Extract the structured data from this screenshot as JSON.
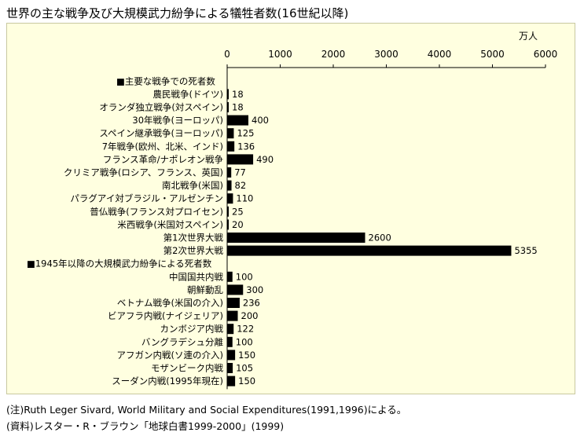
{
  "title": "世界の主な戦争及び大規模武力紛争による犠牲者数(16世紀以降)",
  "unit_label": "万人",
  "notes": [
    "(注)Ruth Leger Sivard, World Military and Social Expenditures(1991,1996)による。",
    "(資料)レスター・R・ブラウン「地球白書1999-2000」(1999)"
  ],
  "chart_data": [
    {
      "type": "bar",
      "orientation": "horizontal",
      "section_label": "■主要な戦争での死者数",
      "xlim": [
        0,
        6000
      ],
      "x_ticks": [
        0,
        1000,
        2000,
        3000,
        4000,
        5000,
        6000
      ],
      "bar_color": "#000000",
      "categories": [
        "農民戦争(ドイツ)",
        "オランダ独立戦争(対スペイン)",
        "30年戦争(ヨーロッパ)",
        "スペイン継承戦争(ヨーロッパ)",
        "7年戦争(欧州、北米、インド)",
        "フランス革命/ナポレオン戦争",
        "クリミア戦争(ロシア、フランス、英国)",
        "南北戦争(米国)",
        "パラグアイ対ブラジル・アルゼンチン",
        "普仏戦争(フランス対プロイセン)",
        "米西戦争(米国対スペイン)",
        "第1次世界大戦",
        "第2次世界大戦"
      ],
      "values": [
        18,
        18,
        400,
        125,
        136,
        490,
        77,
        82,
        110,
        25,
        20,
        2600,
        5355
      ]
    },
    {
      "type": "bar",
      "orientation": "horizontal",
      "section_label": "■1945年以降の大規模武力紛争による死者数",
      "xlim": [
        0,
        6000
      ],
      "bar_color": "#000000",
      "categories": [
        "中国国共内戦",
        "朝鮮動乱",
        "ベトナム戦争(米国の介入)",
        "ビアフラ内戦(ナイジェリア)",
        "カンボジア内戦",
        "バングラデシュ分離",
        "アフガン内戦(ソ連の介入)",
        "モザンビーク内戦",
        "スーダン内戦(1995年現在)"
      ],
      "values": [
        100,
        300,
        236,
        200,
        122,
        100,
        150,
        105,
        150
      ]
    }
  ]
}
